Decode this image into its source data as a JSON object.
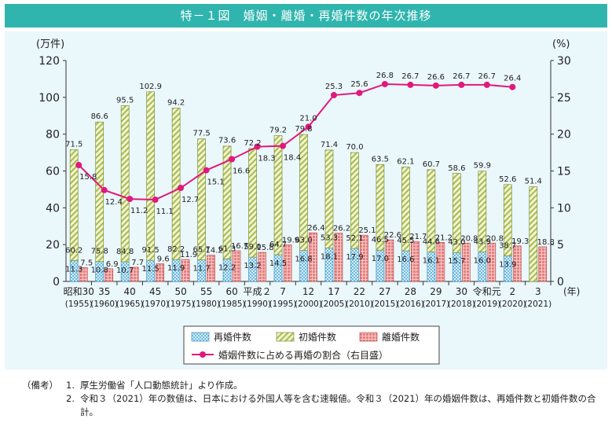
{
  "title": "特－１図　婚姻・離婚・再婚件数の年次推移",
  "notes": {
    "head": "（備考）",
    "items": [
      {
        "num": "1.",
        "text": "厚生労働省「人口動態統計」より作成。"
      },
      {
        "num": "2.",
        "text": "令和３（2021）年の数値は、日本における外国人等を含む速報値。令和３（2021）年の婚姻件数は、再婚件数と初婚件数の合計。"
      }
    ]
  },
  "colors": {
    "title_bg": "#2fb5ae",
    "panel_bg": "#eaf7fb",
    "remarriage": "#7bc3e6",
    "first": "#c8d67a",
    "divorce": "#e98a8a",
    "line": "#e0197d"
  },
  "chart_data": {
    "type": "bar",
    "left_unit": "(万件)",
    "right_unit": "(%)",
    "year_unit": "(年)",
    "yticks_left": [
      "0",
      "20",
      "40",
      "60",
      "80",
      "100",
      "120"
    ],
    "yticks_right": [
      "0",
      "5",
      "10",
      "15",
      "20",
      "25",
      "30"
    ],
    "ylim_left": [
      0,
      120
    ],
    "ylim_right": [
      0,
      30
    ],
    "categories": [
      {
        "era": "昭和30",
        "year": "(1955)"
      },
      {
        "era": "35",
        "year": "(1960)"
      },
      {
        "era": "40",
        "year": "(1965)"
      },
      {
        "era": "45",
        "year": "(1970)"
      },
      {
        "era": "50",
        "year": "(1975)"
      },
      {
        "era": "55",
        "year": "(1980)"
      },
      {
        "era": "60",
        "year": "(1985)"
      },
      {
        "era": "平成２",
        "year": "(1990)"
      },
      {
        "era": "7",
        "year": "(1995)"
      },
      {
        "era": "12",
        "year": "(2000)"
      },
      {
        "era": "17",
        "year": "(2005)"
      },
      {
        "era": "22",
        "year": "(2010)"
      },
      {
        "era": "27",
        "year": "(2015)"
      },
      {
        "era": "28",
        "year": "(2016)"
      },
      {
        "era": "29",
        "year": "(2017)"
      },
      {
        "era": "30",
        "year": "(2018)"
      },
      {
        "era": "令和元",
        "year": "(2019)"
      },
      {
        "era": "2",
        "year": "(2020)"
      },
      {
        "era": "3",
        "year": "(2021)"
      }
    ],
    "series": [
      {
        "name": "再婚件数",
        "values": [
          11.3,
          10.8,
          10.7,
          11.5,
          11.9,
          11.7,
          12.2,
          13.2,
          14.5,
          16.8,
          18.1,
          17.9,
          17.0,
          16.6,
          16.1,
          15.7,
          16.0,
          13.9,
          null
        ]
      },
      {
        "name": "初婚件数",
        "values": [
          60.2,
          75.8,
          84.8,
          91.5,
          82.2,
          65.7,
          61.3,
          59.0,
          64.7,
          63.0,
          53.3,
          52.1,
          46.5,
          45.5,
          44.6,
          43.0,
          43.9,
          38.7,
          null
        ]
      },
      {
        "name": "婚姻件数",
        "values": [
          71.5,
          86.6,
          95.5,
          102.9,
          94.2,
          77.5,
          73.6,
          72.2,
          79.2,
          79.8,
          71.4,
          70.0,
          63.5,
          62.1,
          60.7,
          58.6,
          59.9,
          52.6,
          51.4
        ]
      },
      {
        "name": "離婚件数",
        "values": [
          7.5,
          6.9,
          7.7,
          9.6,
          11.9,
          14.2,
          16.7,
          15.8,
          19.9,
          26.4,
          26.2,
          25.1,
          22.6,
          21.7,
          21.2,
          20.8,
          20.8,
          19.3,
          18.8
        ]
      },
      {
        "name": "婚姻件数に占める再婚の割合（右目盛）",
        "values": [
          15.8,
          12.4,
          11.2,
          11.1,
          12.7,
          15.1,
          16.6,
          18.3,
          18.4,
          21.0,
          25.3,
          25.6,
          26.8,
          26.7,
          26.6,
          26.7,
          26.7,
          26.4,
          null
        ]
      }
    ],
    "legend": [
      "再婚件数",
      "初婚件数",
      "離婚件数",
      "婚姻件数に占める再婚の割合（右目盛）"
    ],
    "legend_placement": "bottom-center",
    "grid": false
  }
}
